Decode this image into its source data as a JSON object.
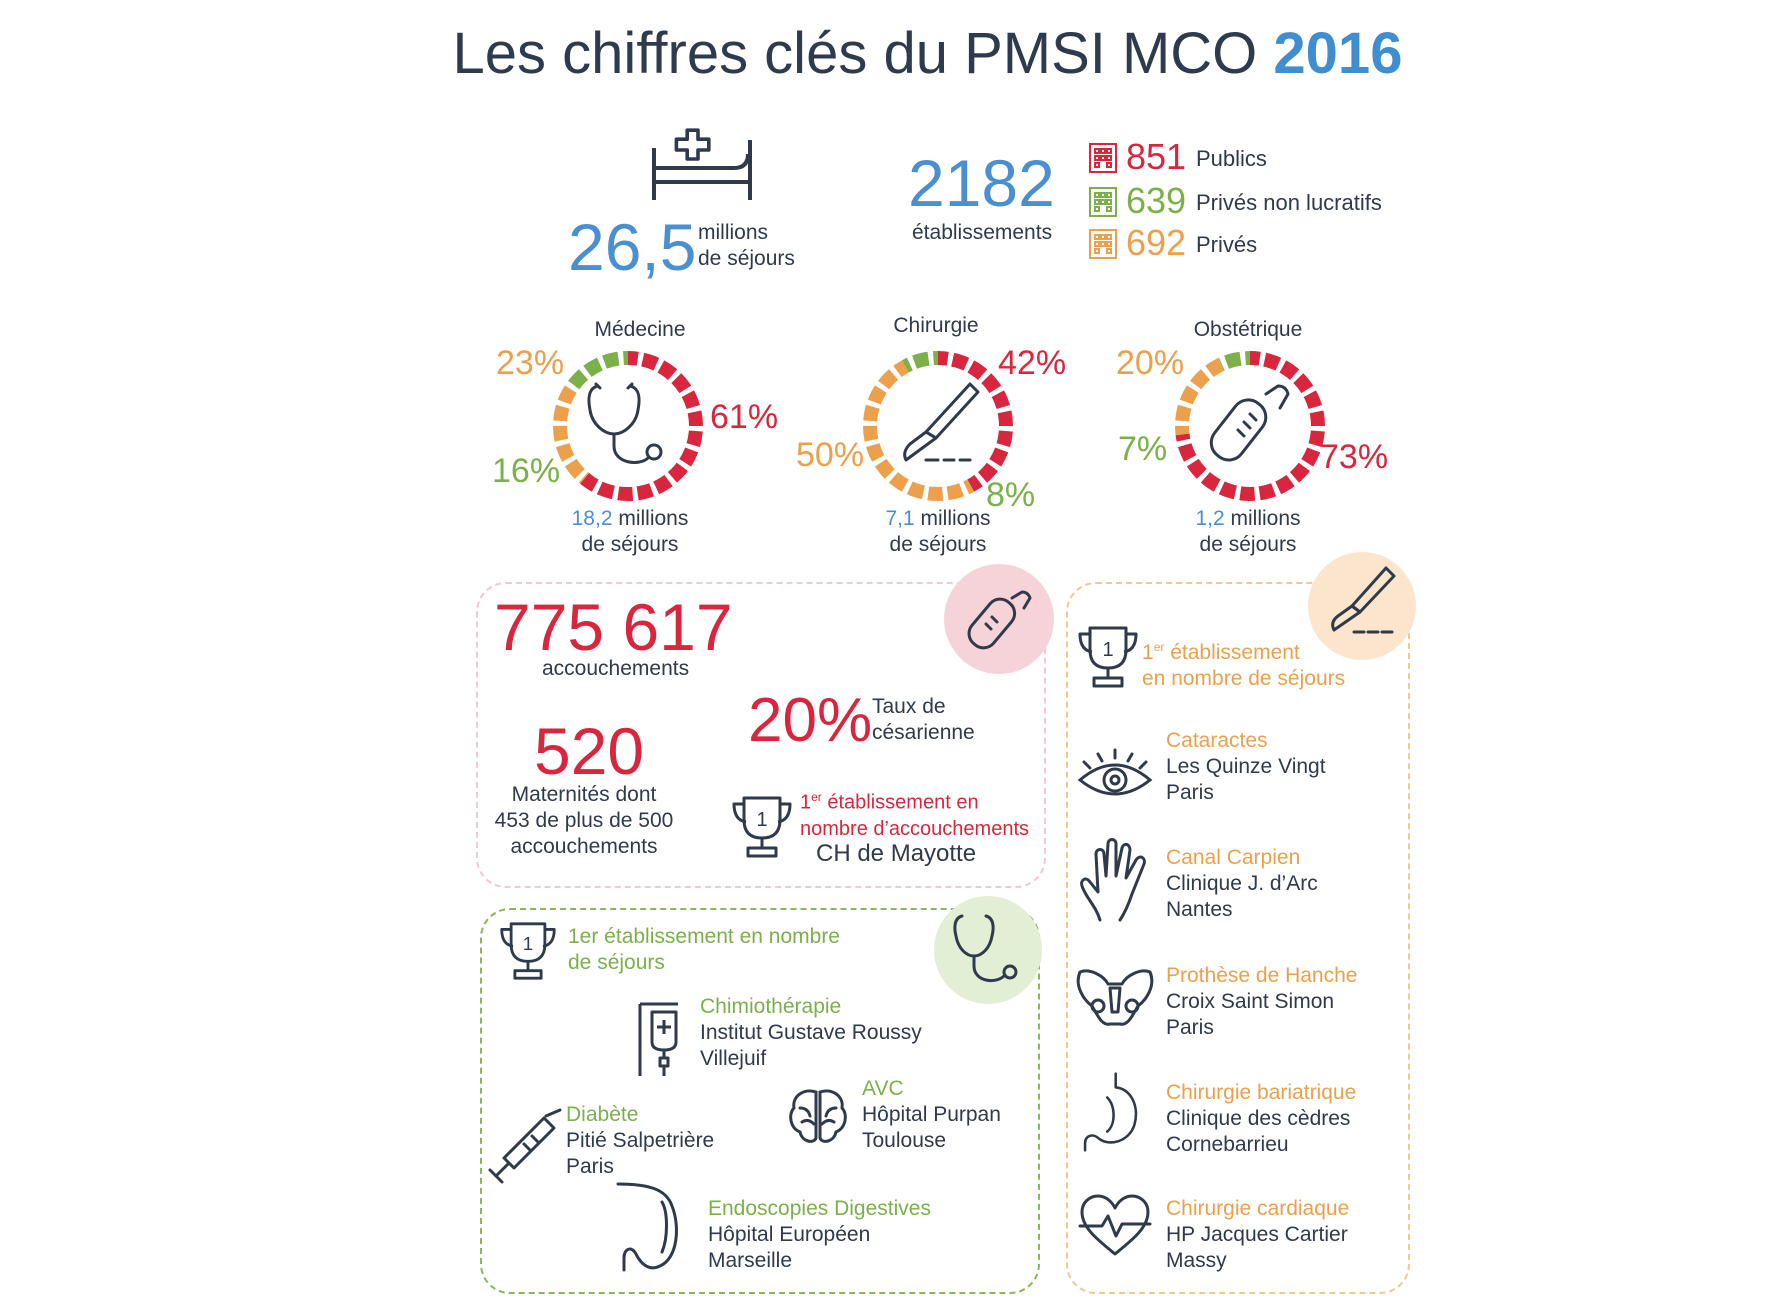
{
  "header": {
    "title": "Les chiffres clés du PMSI MCO",
    "year": "2016"
  },
  "sejours": {
    "value": "26,5",
    "label1": "millions",
    "label2": "de séjours"
  },
  "etablissements": {
    "value": "2182",
    "label": "établissements",
    "types": [
      {
        "value": "851",
        "label": "Publics",
        "color": "#d9263f"
      },
      {
        "value": "639",
        "label": "Privés non lucratifs",
        "color": "#7cb04a"
      },
      {
        "value": "692",
        "label": "Privés",
        "color": "#eda04b"
      }
    ]
  },
  "categories": [
    {
      "title": "Médecine",
      "pcts": {
        "red": "61%",
        "orange": "23%",
        "green": "16%"
      },
      "split": [
        0.61,
        0.23,
        0.16
      ],
      "millions": "18,2",
      "millions_label": "millions",
      "sejours_label": "de séjours",
      "icon": "stethoscope-icon"
    },
    {
      "title": "Chirurgie",
      "pcts": {
        "red": "42%",
        "orange": "50%",
        "green": "8%"
      },
      "split": [
        0.42,
        0.5,
        0.08
      ],
      "millions": "7,1",
      "millions_label": "millions",
      "sejours_label": "de séjours",
      "icon": "scalpel-icon"
    },
    {
      "title": "Obstétrique",
      "pcts": {
        "red": "73%",
        "orange": "20%",
        "green": "7%"
      },
      "split": [
        0.73,
        0.2,
        0.07
      ],
      "millions": "1,2",
      "millions_label": "millions",
      "sejours_label": "de séjours",
      "icon": "baby-bottle-icon"
    }
  ],
  "obstetrique_box": {
    "accouchements_value": "775 617",
    "accouchements_label": "accouchements",
    "cesarienne_value": "20%",
    "cesarienne_label1": "Taux de",
    "cesarienne_label2": "césarienne",
    "maternites_value": "520",
    "maternites_l1": "Maternités dont",
    "maternites_l2": "453 de plus de 500",
    "maternites_l3": "accouchements",
    "first_sup": "er",
    "first_num": "1",
    "first_l1": "établissement en",
    "first_l2": "nombre d’accouchements",
    "first_name": "CH de Mayotte"
  },
  "medecine_box": {
    "first_l1": "1er établissement en nombre",
    "first_l2": "de séjours",
    "items": [
      {
        "title": "Chimiothérapie",
        "name": "Institut Gustave Roussy",
        "city": "Villejuif"
      },
      {
        "title": "AVC",
        "name": "Hôpital Purpan",
        "city": "Toulouse"
      },
      {
        "title": "Diabète",
        "name": "Pitié Salpetrière",
        "city": "Paris"
      },
      {
        "title": "Endoscopies Digestives",
        "name": "Hôpital Européen",
        "city": "Marseille"
      }
    ]
  },
  "chirurgie_box": {
    "first_num": "1",
    "first_sup": "er",
    "first_l1": "établissement",
    "first_l2": "en nombre de séjours",
    "items": [
      {
        "title": "Cataractes",
        "name": "Les Quinze Vingt",
        "city": "Paris"
      },
      {
        "title": "Canal Carpien",
        "name": "Clinique J. d’Arc",
        "city": "Nantes"
      },
      {
        "title": "Prothèse de Hanche",
        "name": "Croix Saint Simon",
        "city": "Paris"
      },
      {
        "title": "Chirurgie bariatrique",
        "name": "Clinique des cèdres",
        "city": "Cornebarrieu"
      },
      {
        "title": "Chirurgie cardiaque",
        "name": "HP Jacques Cartier",
        "city": "Massy"
      }
    ]
  },
  "colors": {
    "red": "#d9263f",
    "orange": "#eda04b",
    "green": "#7cb04a",
    "blue": "#4a8fcf",
    "dark": "#2f3a4a"
  }
}
